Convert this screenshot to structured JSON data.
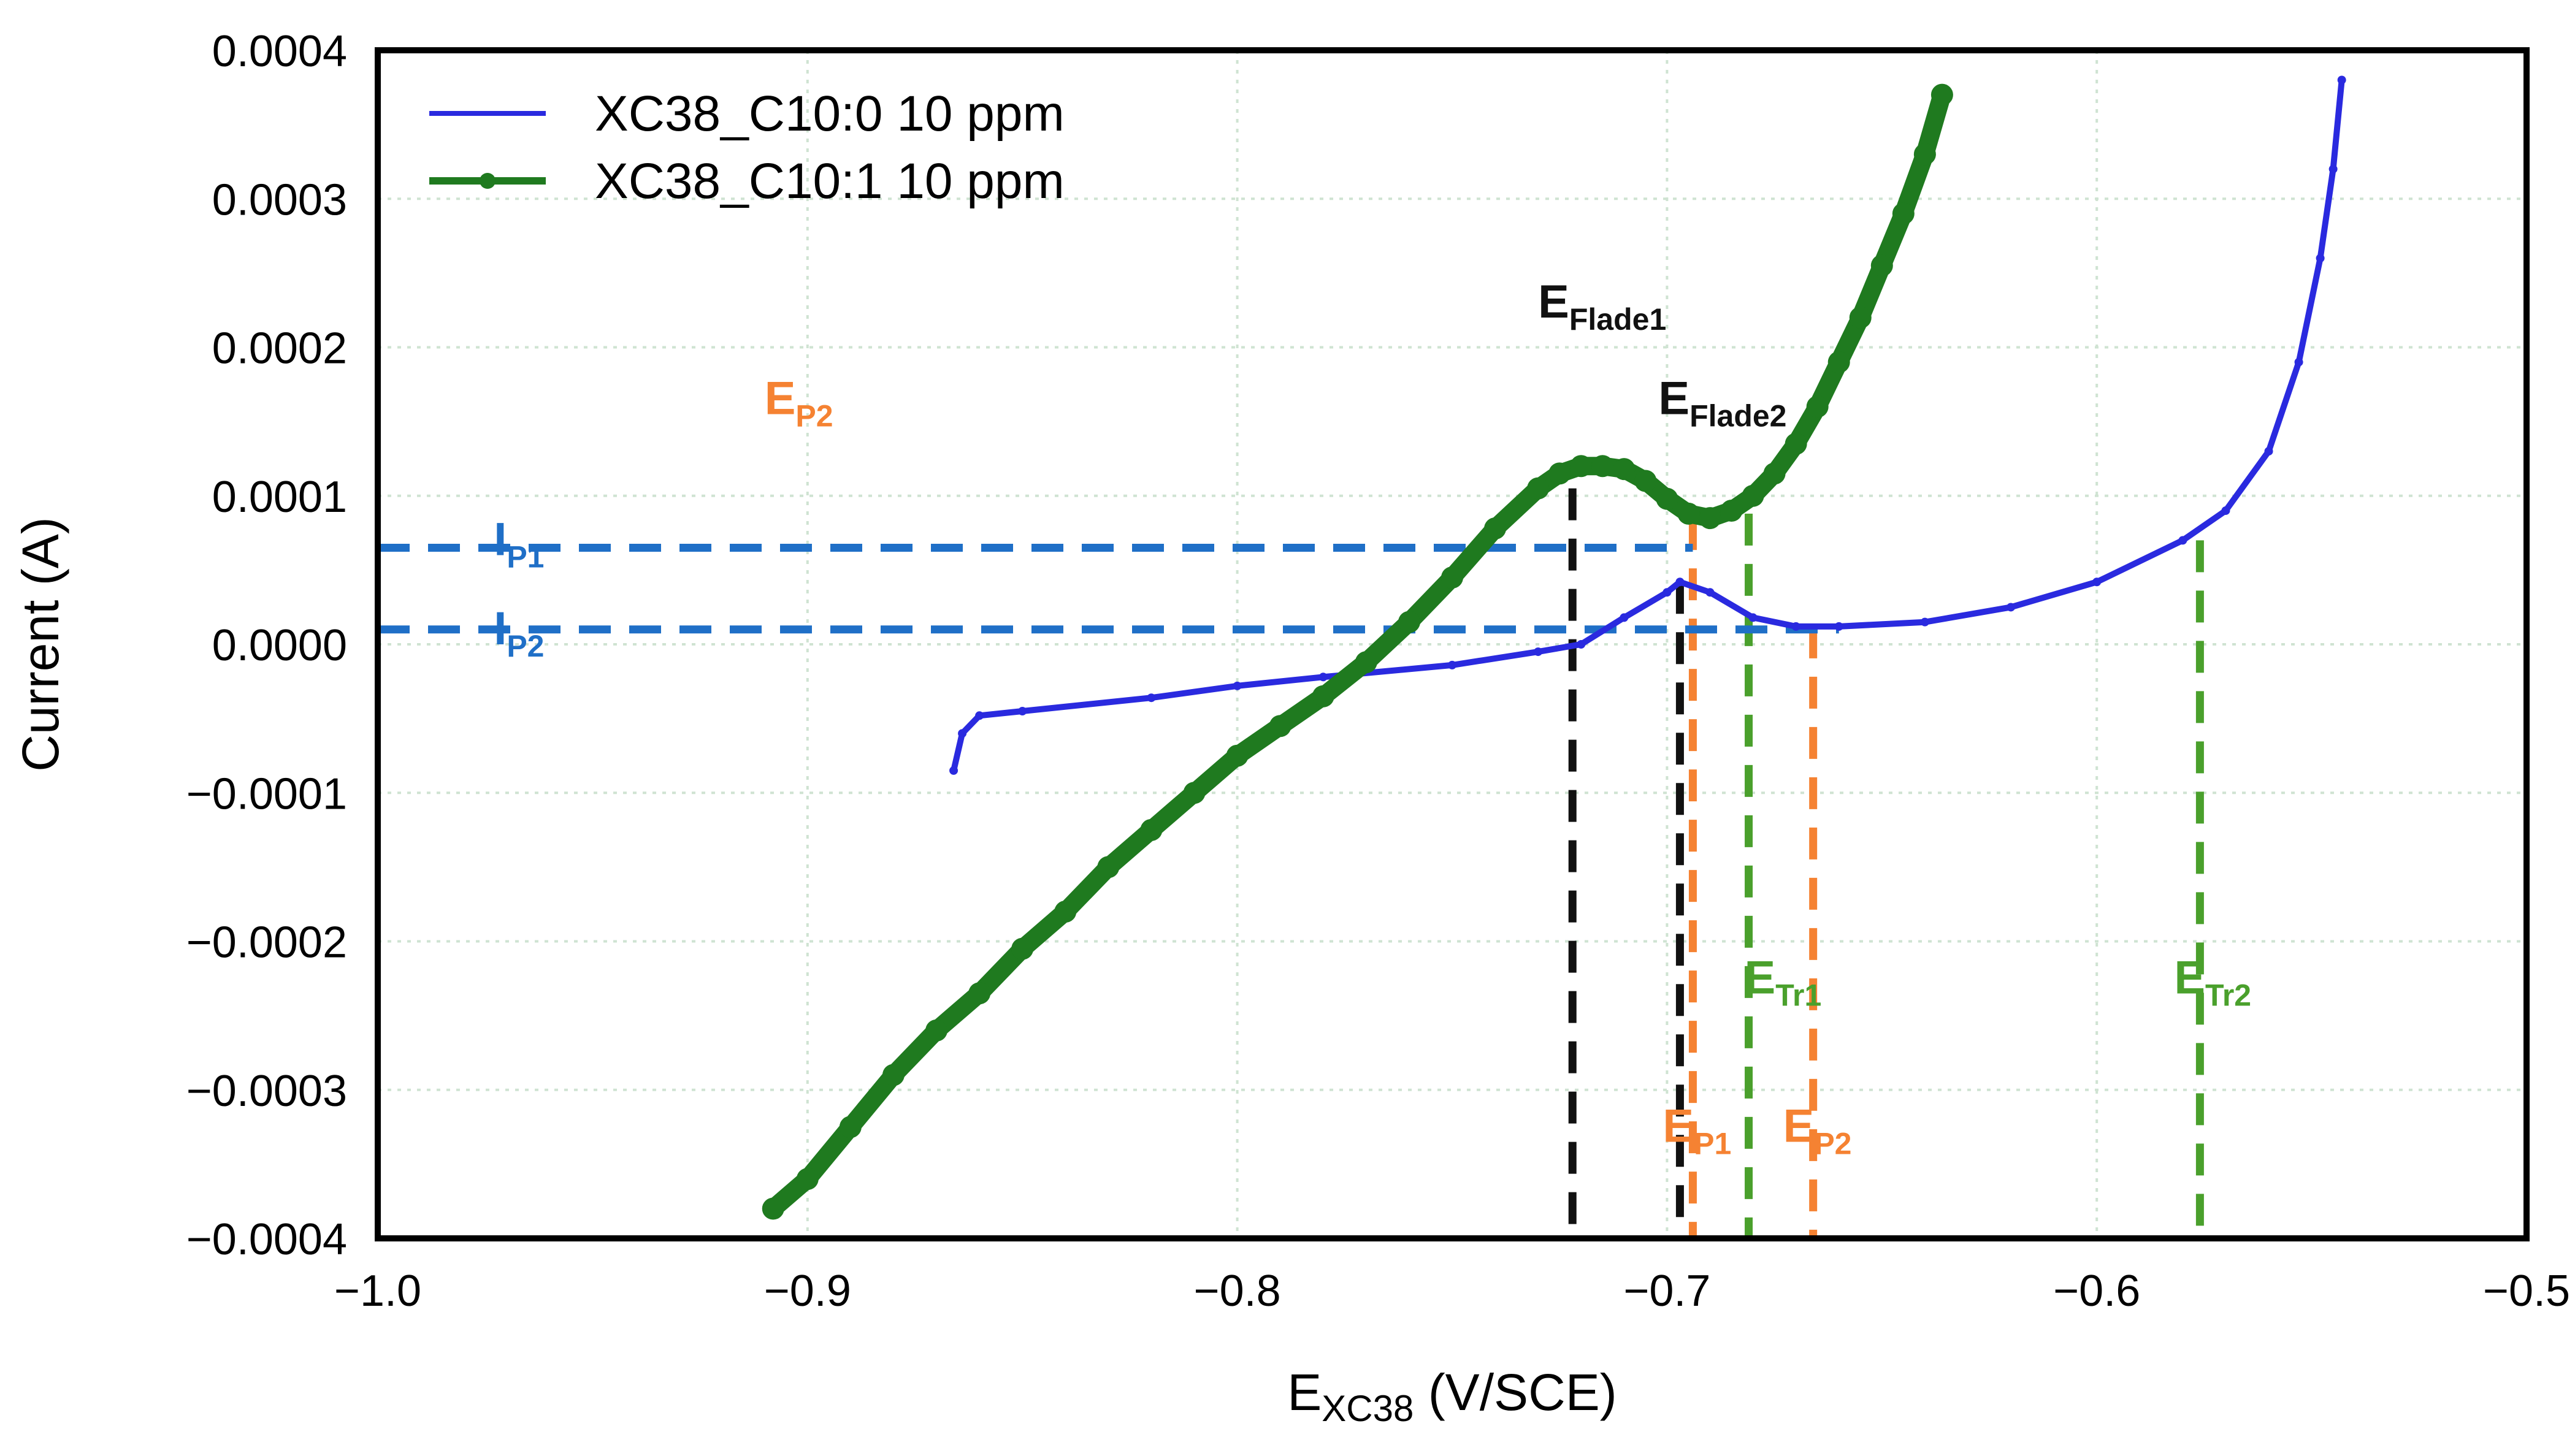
{
  "colors": {
    "blue_series": "#2a2adf",
    "green_series": "#1f7a1f",
    "guide_black": "#111111",
    "guide_orange": "#f58232",
    "guide_green": "#4aa02c",
    "guide_blue": "#1f6fc7",
    "grid": "#cfe3d2"
  },
  "chart_data": {
    "type": "line",
    "xlabel_main": "E",
    "xlabel_sub": "XC38",
    "xlabel_rest": " (V/SCE)",
    "ylabel": "Current (A)",
    "xlim": [
      -1.0,
      -0.5
    ],
    "ylim": [
      -0.0004,
      0.0004
    ],
    "x_ticks": [
      -1.0,
      -0.9,
      -0.8,
      -0.7,
      -0.6,
      -0.5
    ],
    "x_tick_labels": [
      "−1.0",
      "−0.9",
      "−0.8",
      "−0.7",
      "−0.6",
      "−0.5"
    ],
    "y_ticks": [
      0.0004,
      0.0003,
      0.0002,
      0.0001,
      0.0,
      -0.0001,
      -0.0002,
      -0.0003,
      -0.0004
    ],
    "y_tick_labels": [
      "0.0004",
      "0.0003",
      "0.0002",
      "0.0001",
      "0.0000",
      "−0.0001",
      "−0.0002",
      "−0.0003",
      "−0.0004"
    ],
    "grid": true,
    "legend_position": "top-left",
    "series": [
      {
        "name": "XC38_C10:0 10 ppm",
        "color_key": "blue_series",
        "marker": "small",
        "x": [
          -0.866,
          -0.864,
          -0.86,
          -0.85,
          -0.82,
          -0.8,
          -0.78,
          -0.75,
          -0.73,
          -0.72,
          -0.71,
          -0.7,
          -0.697,
          -0.69,
          -0.68,
          -0.67,
          -0.66,
          -0.64,
          -0.62,
          -0.6,
          -0.58,
          -0.57,
          -0.56,
          -0.553,
          -0.548,
          -0.545,
          -0.543
        ],
        "y": [
          -8.5e-05,
          -6e-05,
          -4.8e-05,
          -4.5e-05,
          -3.6e-05,
          -2.8e-05,
          -2.2e-05,
          -1.4e-05,
          -5e-06,
          0.0,
          1.8e-05,
          3.5e-05,
          4.2e-05,
          3.5e-05,
          1.8e-05,
          1.2e-05,
          1.2e-05,
          1.5e-05,
          2.5e-05,
          4.2e-05,
          7e-05,
          9e-05,
          0.00013,
          0.00019,
          0.00026,
          0.00032,
          0.00038
        ]
      },
      {
        "name": "XC38_C10:1 10 ppm",
        "color_key": "green_series",
        "marker": "filled-circle",
        "x": [
          -0.908,
          -0.9,
          -0.89,
          -0.88,
          -0.87,
          -0.86,
          -0.85,
          -0.84,
          -0.83,
          -0.82,
          -0.81,
          -0.8,
          -0.79,
          -0.78,
          -0.77,
          -0.76,
          -0.75,
          -0.74,
          -0.73,
          -0.725,
          -0.72,
          -0.715,
          -0.71,
          -0.705,
          -0.7,
          -0.695,
          -0.69,
          -0.685,
          -0.68,
          -0.675,
          -0.67,
          -0.665,
          -0.66,
          -0.655,
          -0.65,
          -0.645,
          -0.64,
          -0.636
        ],
        "y": [
          -0.00038,
          -0.00036,
          -0.000325,
          -0.00029,
          -0.00026,
          -0.000235,
          -0.000205,
          -0.00018,
          -0.00015,
          -0.000125,
          -0.0001,
          -7.5e-05,
          -5.5e-05,
          -3.5e-05,
          -1.2e-05,
          1.5e-05,
          4.5e-05,
          7.8e-05,
          0.000105,
          0.000115,
          0.00012,
          0.00012,
          0.000118,
          0.00011,
          9.8e-05,
          8.8e-05,
          8.5e-05,
          9e-05,
          0.0001,
          0.000115,
          0.000135,
          0.00016,
          0.00019,
          0.00022,
          0.000255,
          0.00029,
          0.00033,
          0.00037
        ]
      }
    ],
    "guides": [
      {
        "kind": "vline",
        "x": -0.722,
        "y_from": -0.0004,
        "y_to": 0.000105,
        "color_key": "guide_black"
      },
      {
        "kind": "vline",
        "x": -0.697,
        "y_from": -0.0004,
        "y_to": 4.2e-05,
        "color_key": "guide_black"
      },
      {
        "kind": "vline",
        "x": -0.694,
        "y_from": -0.0004,
        "y_to": 8.5e-05,
        "color_key": "guide_orange"
      },
      {
        "kind": "vline",
        "x": -0.666,
        "y_from": -0.0004,
        "y_to": 1.2e-05,
        "color_key": "guide_orange"
      },
      {
        "kind": "vline",
        "x": -0.681,
        "y_from": -0.0004,
        "y_to": 8.8e-05,
        "color_key": "guide_green"
      },
      {
        "kind": "vline",
        "x": -0.576,
        "y_from": -0.0004,
        "y_to": 7e-05,
        "color_key": "guide_green"
      },
      {
        "kind": "hline",
        "y": 6.5e-05,
        "x_from": -1.0,
        "x_to": -0.694,
        "color_key": "guide_blue"
      },
      {
        "kind": "hline",
        "y": 1e-05,
        "x_from": -1.0,
        "x_to": -0.66,
        "color_key": "guide_blue"
      }
    ],
    "annotations": [
      {
        "main": "E",
        "sub": "Flade1",
        "x": -0.73,
        "y": 0.00022,
        "color_key": "guide_black"
      },
      {
        "main": "E",
        "sub": "Flade2",
        "x": -0.702,
        "y": 0.000155,
        "color_key": "guide_black"
      },
      {
        "main": "E",
        "sub": "P2",
        "x": -0.91,
        "y": 0.000155,
        "color_key": "guide_orange"
      },
      {
        "main": "I",
        "sub": "P1",
        "x": -0.973,
        "y": 6e-05,
        "color_key": "guide_blue"
      },
      {
        "main": "I",
        "sub": "P2",
        "x": -0.973,
        "y": 0.0,
        "color_key": "guide_blue"
      },
      {
        "main": "E",
        "sub": "Tr1",
        "x": -0.682,
        "y": -0.000235,
        "color_key": "guide_green"
      },
      {
        "main": "E",
        "sub": "Tr2",
        "x": -0.582,
        "y": -0.000235,
        "color_key": "guide_green"
      },
      {
        "main": "E",
        "sub": "P1",
        "x": -0.701,
        "y": -0.000335,
        "color_key": "guide_orange"
      },
      {
        "main": "E",
        "sub": "P2",
        "x": -0.673,
        "y": -0.000335,
        "color_key": "guide_orange"
      }
    ]
  }
}
